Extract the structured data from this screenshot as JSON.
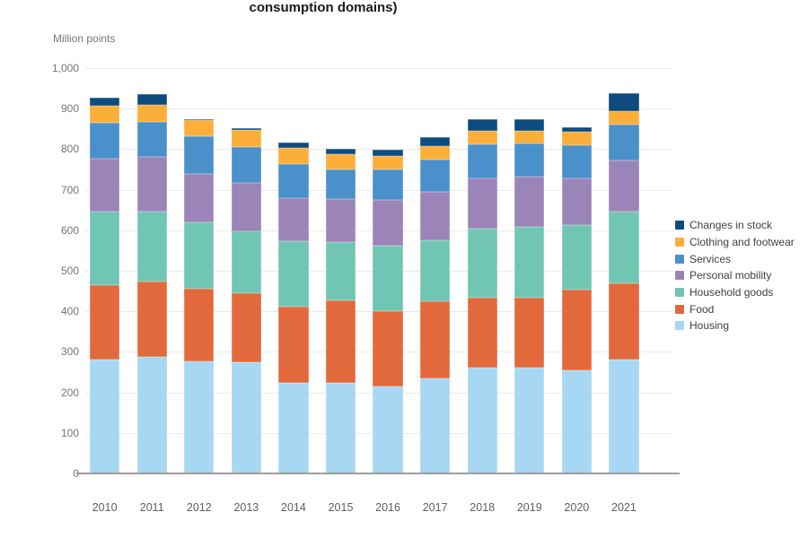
{
  "header": {
    "title_fragment": "consumption domains)"
  },
  "chart_data": {
    "type": "bar",
    "stacked": true,
    "title": "consumption domains)",
    "xlabel": "",
    "ylabel": "Million points",
    "ylim": [
      0,
      1000
    ],
    "ytick_step": 100,
    "yticks": [
      "1,000",
      "900",
      "800",
      "700",
      "600",
      "500",
      "400",
      "300",
      "200",
      "100",
      "0"
    ],
    "grid": true,
    "legend_position": "right",
    "categories": [
      "2010",
      "2011",
      "2012",
      "2013",
      "2014",
      "2015",
      "2016",
      "2017",
      "2018",
      "2019",
      "2020",
      "2021"
    ],
    "series": [
      {
        "name": "Housing",
        "color": "#a7d7f2",
        "values": [
          280,
          288,
          276,
          274,
          223,
          224,
          215,
          234,
          260,
          260,
          255,
          280
        ]
      },
      {
        "name": "Food",
        "color": "#e2693c",
        "values": [
          185,
          185,
          179,
          171,
          189,
          204,
          186,
          191,
          173,
          173,
          198,
          188
        ]
      },
      {
        "name": "Household goods",
        "color": "#70c6b2",
        "values": [
          181,
          174,
          165,
          153,
          161,
          143,
          162,
          151,
          170,
          175,
          160,
          179
        ]
      },
      {
        "name": "Personal mobility",
        "color": "#9b84b8",
        "values": [
          131,
          133,
          118,
          120,
          107,
          105,
          111,
          119,
          126,
          124,
          116,
          125
        ]
      },
      {
        "name": "Services",
        "color": "#4a90cb",
        "values": [
          89,
          88,
          94,
          87,
          84,
          75,
          76,
          80,
          83,
          82,
          81,
          88
        ]
      },
      {
        "name": "Clothing and footwear",
        "color": "#fbae3a",
        "values": [
          42,
          41,
          39,
          42,
          39,
          37,
          33,
          33,
          33,
          31,
          32,
          35
        ]
      },
      {
        "name": "Changes in stock",
        "color": "#0d4c7d",
        "values": [
          19,
          27,
          3,
          5,
          13,
          13,
          15,
          22,
          28,
          28,
          13,
          43
        ]
      }
    ],
    "legend": [
      "Changes in stock",
      "Clothing and footwear",
      "Services",
      "Personal mobility",
      "Household goods",
      "Food",
      "Housing"
    ],
    "totals": [
      927,
      936,
      874,
      852,
      816,
      801,
      798,
      830,
      873,
      873,
      855,
      938
    ]
  }
}
